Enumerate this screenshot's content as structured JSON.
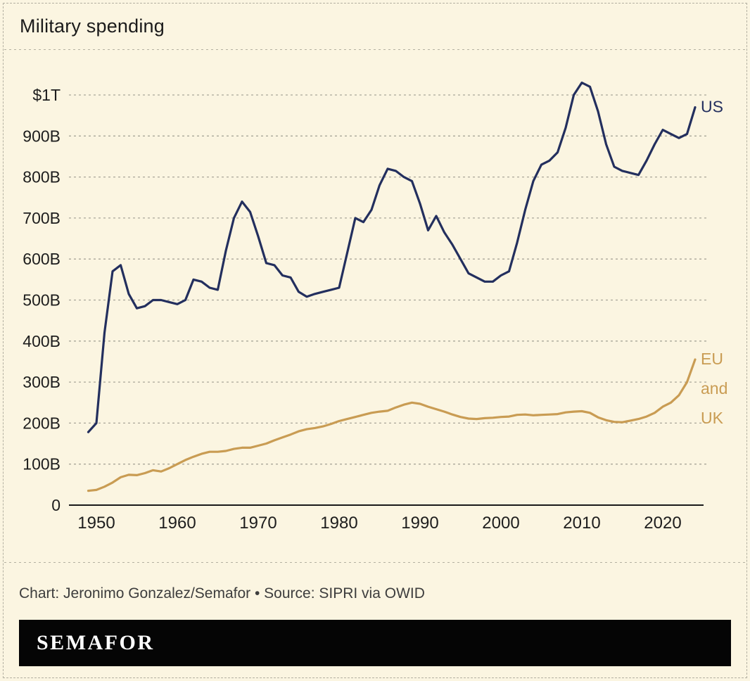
{
  "title": "Military spending",
  "credit": "Chart: Jeronimo Gonzalez/Semafor • Source: SIPRI via OWID",
  "logo": "SEMAFOR",
  "colors": {
    "background": "#FBF5E1",
    "text": "#1d1d1d",
    "axis": "#1a1a1a",
    "grid": "#A9A699",
    "us_line": "#232F5E",
    "eu_uk_line": "#C99C53"
  },
  "chart_data": {
    "type": "line",
    "title": "Military spending",
    "xlabel": "",
    "ylabel": "",
    "ylim": [
      0,
      1050
    ],
    "grid": "horizontal dashed",
    "legend_position": "right-of-line labels",
    "yticks": [
      0,
      100,
      200,
      300,
      400,
      500,
      600,
      700,
      800,
      900,
      1000
    ],
    "ytick_labels": [
      "0",
      "100B",
      "200B",
      "300B",
      "400B",
      "500B",
      "600B",
      "700B",
      "800B",
      "900B",
      "$1T"
    ],
    "xticks": [
      1950,
      1960,
      1970,
      1980,
      1990,
      2000,
      2010,
      2020
    ],
    "x": [
      1949,
      1950,
      1951,
      1952,
      1953,
      1954,
      1955,
      1956,
      1957,
      1958,
      1959,
      1960,
      1961,
      1962,
      1963,
      1964,
      1965,
      1966,
      1967,
      1968,
      1969,
      1970,
      1971,
      1972,
      1973,
      1974,
      1975,
      1976,
      1977,
      1978,
      1979,
      1980,
      1981,
      1982,
      1983,
      1984,
      1985,
      1986,
      1987,
      1988,
      1989,
      1990,
      1991,
      1992,
      1993,
      1994,
      1995,
      1996,
      1997,
      1998,
      1999,
      2000,
      2001,
      2002,
      2003,
      2004,
      2005,
      2006,
      2007,
      2008,
      2009,
      2010,
      2011,
      2012,
      2013,
      2014,
      2015,
      2016,
      2017,
      2018,
      2019,
      2020,
      2021,
      2022,
      2023,
      2024
    ],
    "series": [
      {
        "id": "us",
        "name": "US",
        "label_lines": [
          "US"
        ],
        "color": "#232F5E",
        "values": [
          178,
          200,
          420,
          570,
          585,
          515,
          480,
          485,
          500,
          500,
          495,
          490,
          500,
          550,
          545,
          530,
          525,
          620,
          700,
          740,
          715,
          655,
          590,
          585,
          560,
          555,
          520,
          508,
          515,
          520,
          525,
          530,
          615,
          700,
          690,
          720,
          780,
          820,
          815,
          800,
          790,
          735,
          670,
          705,
          665,
          635,
          600,
          565,
          555,
          545,
          545,
          560,
          570,
          640,
          720,
          790,
          830,
          840,
          860,
          920,
          1000,
          1030,
          1020,
          960,
          880,
          825,
          815,
          810,
          805,
          840,
          880,
          915,
          905,
          895,
          905,
          970
        ]
      },
      {
        "id": "eu-uk",
        "name": "EU and UK",
        "label_lines": [
          "EU",
          "and",
          "UK"
        ],
        "color": "#C99C53",
        "values": [
          35,
          37,
          45,
          55,
          68,
          74,
          73,
          78,
          85,
          82,
          90,
          100,
          110,
          118,
          125,
          130,
          130,
          132,
          137,
          140,
          140,
          145,
          150,
          158,
          165,
          172,
          180,
          185,
          188,
          192,
          198,
          205,
          210,
          215,
          220,
          225,
          228,
          230,
          238,
          245,
          250,
          247,
          240,
          234,
          228,
          221,
          215,
          211,
          210,
          212,
          213,
          215,
          216,
          220,
          221,
          219,
          220,
          221,
          222,
          226,
          228,
          229,
          225,
          214,
          207,
          203,
          202,
          206,
          210,
          216,
          225,
          240,
          250,
          268,
          300,
          355
        ]
      }
    ]
  }
}
